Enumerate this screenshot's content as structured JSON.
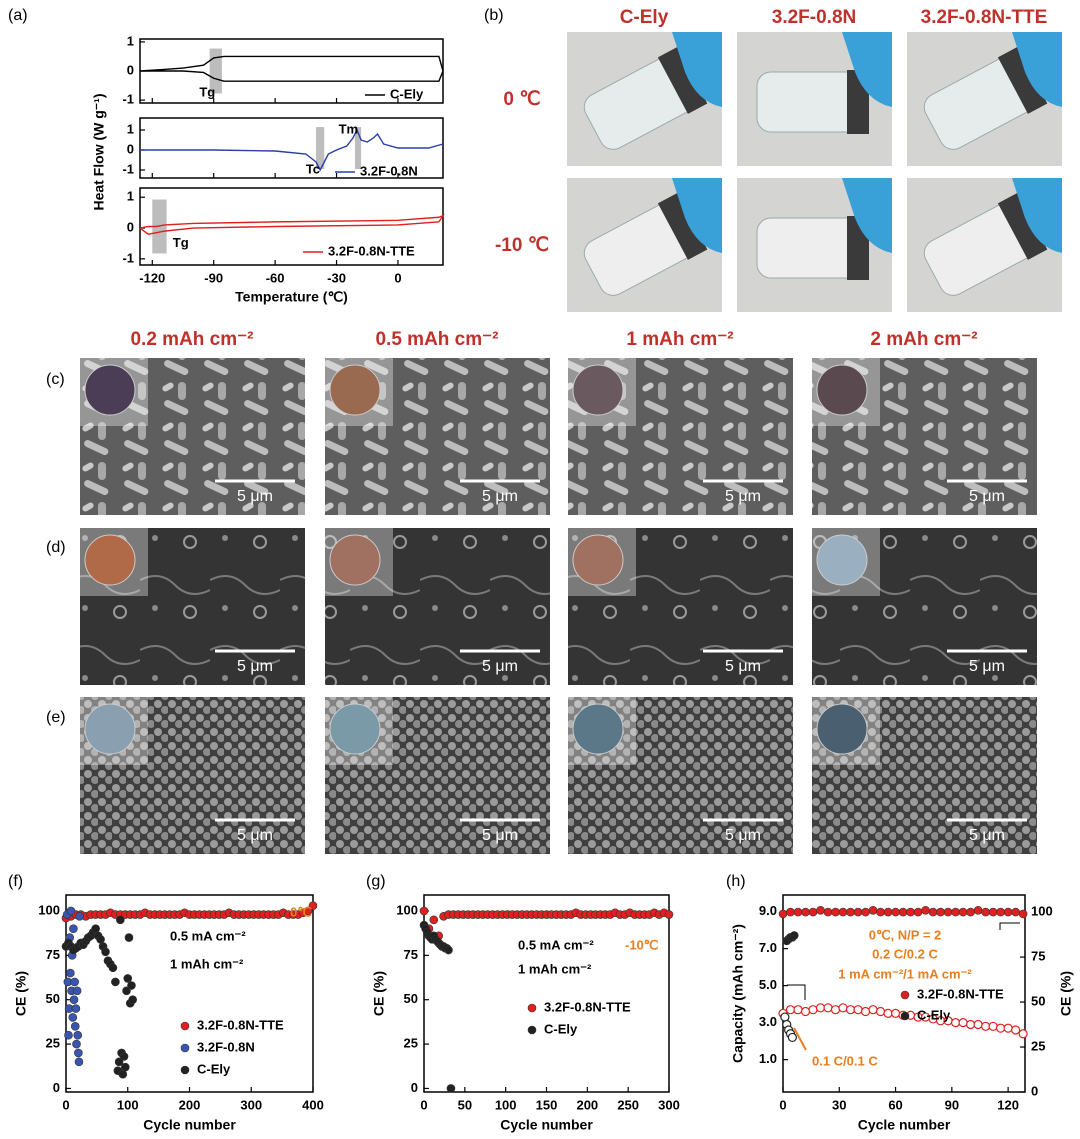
{
  "figure": {
    "panel_labels": [
      "(a)",
      "(b)",
      "(c)",
      "(d)",
      "(e)",
      "(f)",
      "(g)",
      "(h)"
    ],
    "photos": {
      "columns": [
        "C-Ely",
        "3.2F-0.8N",
        "3.2F-0.8N-TTE"
      ],
      "rows": [
        "0 ℃",
        "-10 ℃"
      ]
    },
    "sem": {
      "columns": [
        "0.2 mAh cm⁻²",
        "0.5 mAh cm⁻²",
        "1 mAh cm⁻²",
        "2 mAh cm⁻²"
      ],
      "scale_bar": "5 μm"
    }
  },
  "chart_data": [
    {
      "type": "stacked-line",
      "xlabel": "Temperature (℃)",
      "ylabel": "Heat Flow (W g⁻¹)",
      "xlim": [
        -126,
        22
      ],
      "xticks": [
        -120,
        -90,
        -60,
        -30,
        0
      ],
      "panels": [
        {
          "ylim": [
            -1.1,
            1.1
          ],
          "yticks": [
            -1,
            0,
            1
          ],
          "highlights": [
            [
              -92,
              -86
            ]
          ],
          "annotations": [
            {
              "text": "Tg",
              "x": -97,
              "y": -0.75
            }
          ],
          "series": [
            {
              "name": "C-Ely",
              "color": "#000000",
              "x": [
                -126,
                -115,
                -105,
                -95,
                -90,
                -85,
                -60,
                -30,
                0,
                20,
                22,
                20,
                0,
                -30,
                -60,
                -85,
                -90,
                -95,
                -105,
                -115,
                -126
              ],
              "values": [
                0,
                0.05,
                0.1,
                0.2,
                0.45,
                0.5,
                0.5,
                0.5,
                0.5,
                0.5,
                0,
                -0.35,
                -0.35,
                -0.35,
                -0.35,
                -0.35,
                -0.25,
                -0.05,
                0,
                0,
                0
              ]
            }
          ]
        },
        {
          "ylim": [
            -1.4,
            1.6
          ],
          "yticks": [
            -1,
            0,
            1
          ],
          "highlights": [
            [
              -40,
              -36
            ],
            [
              -21,
              -18
            ]
          ],
          "annotations": [
            {
              "text": "Tm",
              "x": -29,
              "y": 1
            },
            {
              "text": "Tc",
              "x": -45,
              "y": -1
            }
          ],
          "series": [
            {
              "name": "3.2F-0.8N",
              "color": "#2b3fa8",
              "x": [
                -126,
                -90,
                -60,
                -45,
                -40,
                -38,
                -36,
                -34,
                -30,
                -25,
                -22,
                -20,
                -18,
                -15,
                -12,
                -10,
                -7,
                0,
                15,
                22
              ],
              "values": [
                0,
                0,
                -0.05,
                -0.2,
                -0.6,
                -1.0,
                -0.6,
                -0.2,
                0,
                0.2,
                0.6,
                1.0,
                0.5,
                0.4,
                0.6,
                0.8,
                0.3,
                0.1,
                0.1,
                0.3
              ]
            }
          ]
        },
        {
          "ylim": [
            -1.2,
            1.3
          ],
          "yticks": [
            -1,
            0,
            1
          ],
          "highlights": [
            [
              -120,
              -113
            ]
          ],
          "annotations": [
            {
              "text": "Tg",
              "x": -110,
              "y": -0.5
            }
          ],
          "series": [
            {
              "name": "3.2F-0.8N-TTE",
              "color": "#e02020",
              "x": [
                -126,
                -122,
                -118,
                -114,
                -100,
                -60,
                0,
                20,
                22,
                20,
                0,
                -60,
                -100,
                -114,
                -118,
                -122,
                -126
              ],
              "values": [
                0,
                -0.2,
                -0.15,
                -0.1,
                0,
                0.05,
                0.1,
                0.2,
                0.4,
                0.35,
                0.25,
                0.2,
                0.15,
                0.1,
                0.05,
                0.05,
                0
              ]
            }
          ]
        }
      ]
    },
    {
      "type": "scatter",
      "xlabel": "Cycle number",
      "ylabel": "CE (%)",
      "xlim": [
        0,
        400
      ],
      "xticks": [
        0,
        100,
        200,
        300,
        400
      ],
      "ylim": [
        -2,
        109
      ],
      "yticks": [
        0,
        25,
        50,
        75,
        100
      ],
      "annotations": [
        {
          "text": "0.5 mA cm⁻²",
          "color": "#000000"
        },
        {
          "text": "1 mAh cm⁻²",
          "color": "#000000"
        },
        {
          "text": "0℃",
          "color": "#e87e1f"
        }
      ],
      "series": [
        {
          "name": "3.2F-0.8N-TTE",
          "color": "#e02020",
          "x": [
            0,
            8,
            16,
            24,
            32,
            40,
            48,
            56,
            64,
            72,
            80,
            88,
            96,
            104,
            112,
            120,
            128,
            136,
            144,
            152,
            160,
            168,
            176,
            184,
            192,
            200,
            208,
            216,
            224,
            232,
            240,
            248,
            256,
            264,
            272,
            280,
            288,
            296,
            304,
            312,
            320,
            328,
            336,
            344,
            352,
            360,
            368,
            376,
            384,
            392,
            400
          ],
          "values": [
            96,
            97,
            98,
            98,
            97,
            98,
            98,
            98,
            98,
            99,
            98,
            98,
            98,
            98,
            98,
            98,
            99,
            98,
            98,
            98,
            98,
            98,
            98,
            98,
            99,
            98,
            98,
            98,
            98,
            98,
            98,
            98,
            98,
            99,
            98,
            98,
            98,
            98,
            98,
            98,
            98,
            98,
            98,
            98,
            99,
            98,
            98,
            98,
            99,
            100,
            103
          ]
        },
        {
          "name": "3.2F-0.8N",
          "color": "#3a55b0",
          "x": [
            2,
            3,
            4,
            5,
            6,
            7,
            8,
            9,
            10,
            11,
            12,
            13,
            14,
            15,
            16,
            17,
            18,
            19,
            20,
            21,
            22
          ],
          "values": [
            98,
            60,
            30,
            45,
            85,
            65,
            100,
            55,
            75,
            40,
            90,
            50,
            60,
            35,
            45,
            25,
            55,
            30,
            20,
            15,
            97
          ]
        },
        {
          "name": "C-Ely",
          "color": "#222222",
          "x": [
            0,
            4,
            8,
            12,
            16,
            20,
            24,
            28,
            32,
            36,
            40,
            44,
            48,
            52,
            56,
            60,
            64,
            68,
            72,
            76,
            80,
            84,
            86,
            88,
            90,
            92,
            94,
            96,
            98,
            100,
            102,
            104,
            106,
            108
          ],
          "values": [
            80,
            82,
            80,
            78,
            79,
            80,
            82,
            81,
            83,
            85,
            86,
            88,
            90,
            86,
            84,
            80,
            77,
            72,
            70,
            68,
            60,
            10,
            15,
            95,
            20,
            8,
            18,
            12,
            55,
            62,
            85,
            48,
            58,
            50
          ]
        }
      ]
    },
    {
      "type": "scatter",
      "xlabel": "Cycle number",
      "ylabel": "CE (%)",
      "xlim": [
        0,
        300
      ],
      "xticks": [
        0,
        50,
        100,
        150,
        200,
        250,
        300
      ],
      "ylim": [
        -2,
        109
      ],
      "yticks": [
        0,
        25,
        50,
        75,
        100
      ],
      "annotations": [
        {
          "text": "0.5 mA cm⁻²",
          "color": "#000000"
        },
        {
          "text": "1 mAh cm⁻²",
          "color": "#000000"
        },
        {
          "text": "-10℃",
          "color": "#e87e1f"
        }
      ],
      "series": [
        {
          "name": "3.2F-0.8N-TTE",
          "color": "#e02020",
          "x": [
            0,
            6,
            12,
            18,
            24,
            30,
            36,
            42,
            48,
            54,
            60,
            66,
            72,
            78,
            84,
            90,
            96,
            102,
            108,
            114,
            120,
            126,
            132,
            138,
            144,
            150,
            156,
            162,
            168,
            174,
            180,
            186,
            192,
            198,
            204,
            210,
            216,
            222,
            228,
            234,
            240,
            246,
            252,
            258,
            264,
            270,
            276,
            282,
            288,
            294,
            300
          ],
          "values": [
            100,
            90,
            95,
            86,
            97,
            98,
            98,
            98,
            98,
            98,
            98,
            98,
            98,
            98,
            98,
            98,
            98,
            98,
            98,
            98,
            98,
            98,
            98,
            98,
            98,
            98,
            98,
            98,
            98,
            98,
            98,
            99,
            98,
            98,
            98,
            98,
            98,
            98,
            98,
            99,
            98,
            98,
            99,
            98,
            98,
            98,
            98,
            99,
            98,
            99,
            98
          ]
        },
        {
          "name": "C-Ely",
          "color": "#222222",
          "x": [
            0,
            2,
            4,
            6,
            8,
            10,
            12,
            14,
            16,
            18,
            20,
            22,
            24,
            26,
            28,
            30,
            33
          ],
          "values": [
            92,
            90,
            88,
            86,
            85,
            84,
            86,
            84,
            83,
            82,
            81,
            80,
            80,
            79,
            79,
            78,
            0
          ]
        }
      ]
    },
    {
      "type": "dual-axis-scatter",
      "xlabel": "Cycle number",
      "ylabel": "Capacity (mAh cm⁻²)",
      "y2label": "CE (%)",
      "xlim": [
        0,
        129
      ],
      "xticks": [
        0,
        30,
        60,
        90,
        120
      ],
      "ylim": [
        -0.75,
        9.9
      ],
      "yticks": [
        {
          "value": 1,
          "label": "1.0"
        },
        {
          "value": 3,
          "label": "3.0"
        },
        {
          "value": 5,
          "label": "5.0"
        },
        {
          "value": 7,
          "label": "7.0"
        },
        {
          "value": 9,
          "label": "9.0"
        }
      ],
      "y2lim": [
        0,
        109.5
      ],
      "y2ticks": [
        0,
        25,
        50,
        75,
        100
      ],
      "annotations": [
        {
          "text": "0℃, N/P = 2",
          "color": "#e87e1f"
        },
        {
          "text": "0.2 C/0.2 C",
          "color": "#e87e1f"
        },
        {
          "text": "1 mA cm⁻²/1 mA cm⁻²",
          "color": "#e87e1f"
        },
        {
          "text": "0.1 C/0.1 C",
          "color": "#e87e1f"
        }
      ],
      "series": [
        {
          "name": "3.2F-0.8N-TTE",
          "color": "#e02020",
          "capacity": {
            "x": [
              0,
              4,
              8,
              12,
              16,
              20,
              24,
              28,
              32,
              36,
              40,
              44,
              48,
              52,
              56,
              60,
              64,
              68,
              72,
              76,
              80,
              84,
              88,
              92,
              96,
              100,
              104,
              108,
              112,
              116,
              120,
              124,
              128
            ],
            "values": [
              3.5,
              3.7,
              3.7,
              3.6,
              3.7,
              3.8,
              3.8,
              3.7,
              3.8,
              3.7,
              3.7,
              3.6,
              3.7,
              3.6,
              3.5,
              3.5,
              3.4,
              3.4,
              3.3,
              3.3,
              3.2,
              3.1,
              3.1,
              3.0,
              3.0,
              2.9,
              2.9,
              2.8,
              2.8,
              2.7,
              2.7,
              2.6,
              2.4
            ]
          },
          "ce": {
            "axis": "y2",
            "x": [
              0,
              4,
              8,
              12,
              16,
              20,
              24,
              28,
              32,
              36,
              40,
              44,
              48,
              52,
              56,
              60,
              64,
              68,
              72,
              76,
              80,
              84,
              88,
              92,
              96,
              100,
              104,
              108,
              112,
              116,
              120,
              124,
              128
            ],
            "values": [
              99,
              100,
              100,
              100,
              100,
              101,
              100,
              100,
              100,
              100,
              100,
              100,
              101,
              100,
              100,
              100,
              100,
              100,
              100,
              101,
              100,
              100,
              100,
              100,
              100,
              100,
              101,
              100,
              100,
              100,
              100,
              100,
              99
            ]
          }
        },
        {
          "name": "C-Ely",
          "color": "#222222",
          "capacity": {
            "x": [
              1,
              2,
              3,
              4,
              5
            ],
            "values": [
              3.3,
              2.9,
              2.6,
              2.4,
              2.2
            ]
          },
          "ce": {
            "axis": "y2",
            "x": [
              2,
              3,
              4,
              5,
              6
            ],
            "values": [
              84,
              85,
              86,
              86,
              87
            ]
          }
        }
      ]
    }
  ]
}
